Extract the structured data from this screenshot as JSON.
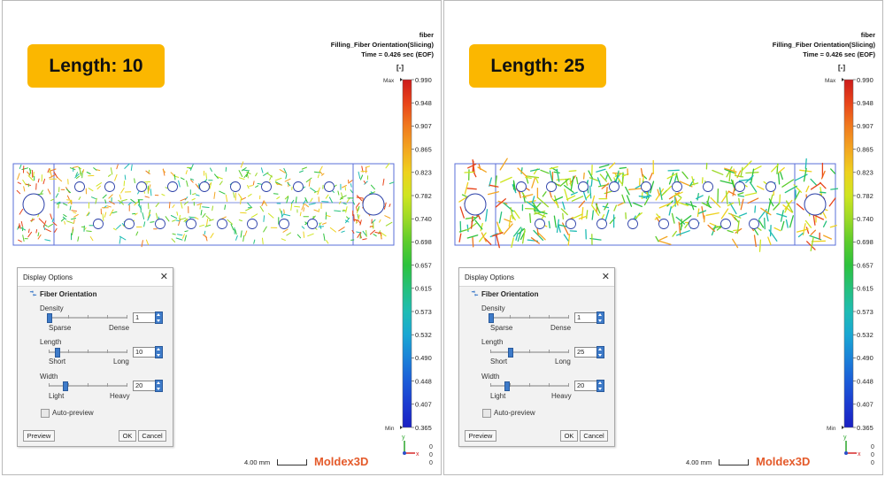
{
  "panels": [
    {
      "badge": "Length: 10",
      "header": [
        "fiber",
        "Filling_Fiber Orientation(Slicing)",
        "Time = 0.426 sec (EOF)"
      ],
      "unit": "[-]",
      "legend": {
        "min_label": "Min",
        "max_label": "Max",
        "values": [
          "0.990",
          "0.948",
          "0.907",
          "0.865",
          "0.823",
          "0.782",
          "0.740",
          "0.698",
          "0.657",
          "0.615",
          "0.573",
          "0.532",
          "0.490",
          "0.448",
          "0.407",
          "0.365"
        ]
      },
      "dialog": {
        "title": "Display Options",
        "section": "Fiber Orientation",
        "density": {
          "label": "Density",
          "left": "Sparse",
          "right": "Dense",
          "value": "1",
          "level": 0.0
        },
        "length": {
          "label": "Length",
          "left": "Short",
          "right": "Long",
          "value": "10",
          "level": 0.1
        },
        "width": {
          "label": "Width",
          "left": "Light",
          "right": "Heavy",
          "value": "20",
          "level": 0.2
        },
        "auto_preview": "Auto-preview",
        "preview_btn": "Preview",
        "ok_btn": "OK",
        "cancel_btn": "Cancel"
      },
      "scale": "4.00 mm",
      "logo_main": "Moldex",
      "logo_3d": "3D",
      "triad": {
        "y": "y",
        "x": "x",
        "coords": [
          "0",
          "0",
          "0"
        ]
      }
    },
    {
      "badge": "Length: 25",
      "header": [
        "fiber",
        "Filling_Fiber Orientation(Slicing)",
        "Time = 0.426 sec (EOF)"
      ],
      "unit": "[-]",
      "legend": {
        "min_label": "Min",
        "max_label": "Max",
        "values": [
          "0.990",
          "0.948",
          "0.907",
          "0.865",
          "0.823",
          "0.782",
          "0.740",
          "0.698",
          "0.657",
          "0.615",
          "0.573",
          "0.532",
          "0.490",
          "0.448",
          "0.407",
          "0.365"
        ]
      },
      "dialog": {
        "title": "Display Options",
        "section": "Fiber Orientation",
        "density": {
          "label": "Density",
          "left": "Sparse",
          "right": "Dense",
          "value": "1",
          "level": 0.0
        },
        "length": {
          "label": "Length",
          "left": "Short",
          "right": "Long",
          "value": "25",
          "level": 0.25
        },
        "width": {
          "label": "Width",
          "left": "Light",
          "right": "Heavy",
          "value": "20",
          "level": 0.2
        },
        "auto_preview": "Auto-preview",
        "preview_btn": "Preview",
        "ok_btn": "OK",
        "cancel_btn": "Cancel"
      },
      "scale": "4.00 mm",
      "logo_main": "Moldex",
      "logo_3d": "3D",
      "triad": {
        "y": "y",
        "x": "x",
        "coords": [
          "0",
          "0",
          "0"
        ]
      }
    }
  ],
  "colors": {
    "badge": "#fbb700",
    "accent": "#3e7bc9",
    "logo": "#e45a2a",
    "outline": "#5a6fd8"
  }
}
